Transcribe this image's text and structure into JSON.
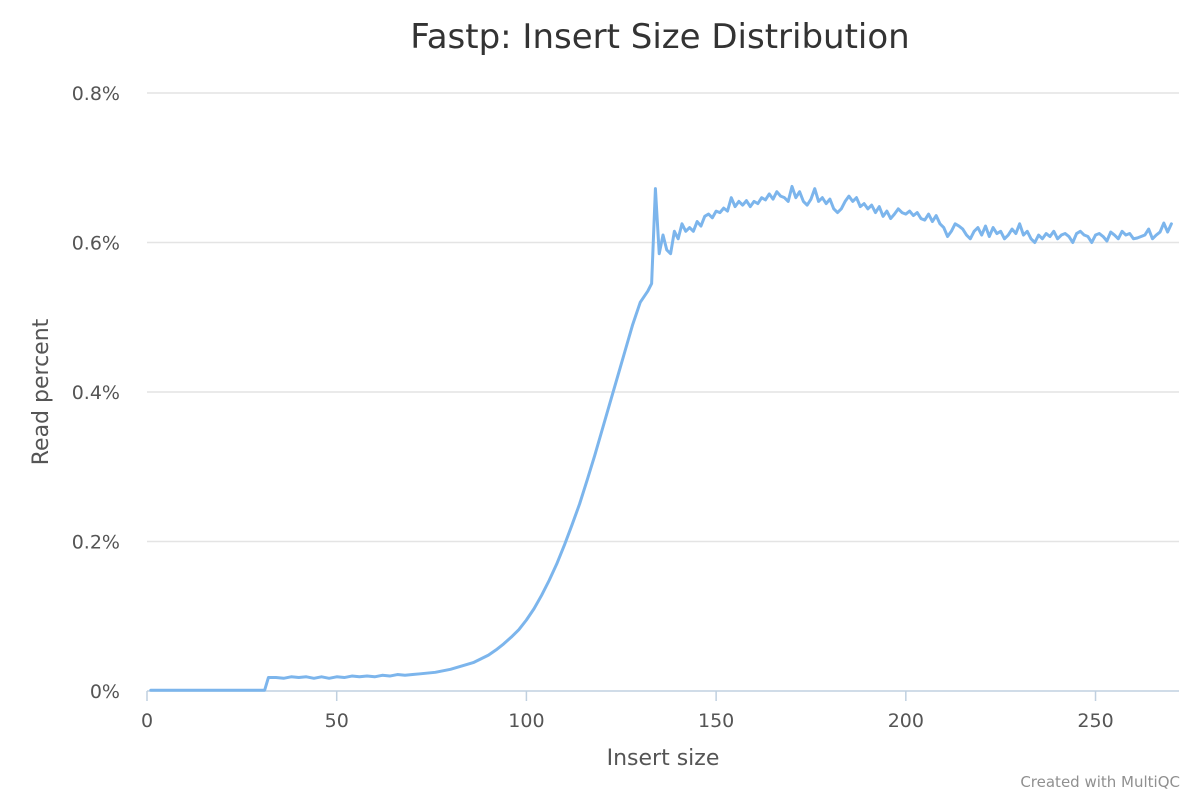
{
  "chart_data": {
    "type": "line",
    "title": "Fastp: Insert Size Distribution",
    "xlabel": "Insert size",
    "ylabel": "Read percent",
    "xlim": [
      0,
      272
    ],
    "ylim": [
      0,
      0.8
    ],
    "x_ticks": [
      "0",
      "50",
      "100",
      "150",
      "200",
      "250"
    ],
    "y_ticks": [
      "0%",
      "0.2%",
      "0.4%",
      "0.6%",
      "0.8%"
    ],
    "grid": true,
    "legend": "none",
    "series": [
      {
        "color": "#7cb5ec",
        "points": [
          [
            1,
            0.001
          ],
          [
            31,
            0.001
          ],
          [
            32,
            0.018
          ],
          [
            34,
            0.018
          ],
          [
            36,
            0.017
          ],
          [
            38,
            0.019
          ],
          [
            40,
            0.018
          ],
          [
            42,
            0.019
          ],
          [
            44,
            0.017
          ],
          [
            46,
            0.019
          ],
          [
            48,
            0.017
          ],
          [
            50,
            0.019
          ],
          [
            52,
            0.018
          ],
          [
            54,
            0.02
          ],
          [
            56,
            0.019
          ],
          [
            58,
            0.02
          ],
          [
            60,
            0.019
          ],
          [
            62,
            0.021
          ],
          [
            64,
            0.02
          ],
          [
            66,
            0.022
          ],
          [
            68,
            0.021
          ],
          [
            70,
            0.022
          ],
          [
            72,
            0.023
          ],
          [
            74,
            0.024
          ],
          [
            76,
            0.025
          ],
          [
            78,
            0.027
          ],
          [
            80,
            0.029
          ],
          [
            82,
            0.032
          ],
          [
            84,
            0.035
          ],
          [
            86,
            0.038
          ],
          [
            88,
            0.043
          ],
          [
            90,
            0.048
          ],
          [
            92,
            0.055
          ],
          [
            94,
            0.063
          ],
          [
            96,
            0.072
          ],
          [
            98,
            0.082
          ],
          [
            100,
            0.095
          ],
          [
            102,
            0.11
          ],
          [
            104,
            0.128
          ],
          [
            106,
            0.148
          ],
          [
            108,
            0.17
          ],
          [
            110,
            0.195
          ],
          [
            112,
            0.222
          ],
          [
            114,
            0.25
          ],
          [
            116,
            0.282
          ],
          [
            118,
            0.315
          ],
          [
            120,
            0.35
          ],
          [
            122,
            0.385
          ],
          [
            124,
            0.42
          ],
          [
            126,
            0.455
          ],
          [
            128,
            0.49
          ],
          [
            130,
            0.52
          ],
          [
            132,
            0.535
          ],
          [
            133,
            0.545
          ],
          [
            134,
            0.672
          ],
          [
            135,
            0.585
          ],
          [
            136,
            0.61
          ],
          [
            137,
            0.59
          ],
          [
            138,
            0.585
          ],
          [
            139,
            0.615
          ],
          [
            140,
            0.605
          ],
          [
            141,
            0.625
          ],
          [
            142,
            0.615
          ],
          [
            143,
            0.62
          ],
          [
            144,
            0.615
          ],
          [
            145,
            0.628
          ],
          [
            146,
            0.622
          ],
          [
            147,
            0.635
          ],
          [
            148,
            0.638
          ],
          [
            149,
            0.633
          ],
          [
            150,
            0.642
          ],
          [
            151,
            0.64
          ],
          [
            152,
            0.646
          ],
          [
            153,
            0.642
          ],
          [
            154,
            0.66
          ],
          [
            155,
            0.648
          ],
          [
            156,
            0.655
          ],
          [
            157,
            0.65
          ],
          [
            158,
            0.656
          ],
          [
            159,
            0.648
          ],
          [
            160,
            0.655
          ],
          [
            161,
            0.652
          ],
          [
            162,
            0.66
          ],
          [
            163,
            0.657
          ],
          [
            164,
            0.665
          ],
          [
            165,
            0.658
          ],
          [
            166,
            0.668
          ],
          [
            167,
            0.662
          ],
          [
            168,
            0.66
          ],
          [
            169,
            0.655
          ],
          [
            170,
            0.675
          ],
          [
            171,
            0.66
          ],
          [
            172,
            0.668
          ],
          [
            173,
            0.655
          ],
          [
            174,
            0.65
          ],
          [
            175,
            0.658
          ],
          [
            176,
            0.672
          ],
          [
            177,
            0.655
          ],
          [
            178,
            0.66
          ],
          [
            179,
            0.652
          ],
          [
            180,
            0.658
          ],
          [
            181,
            0.645
          ],
          [
            182,
            0.64
          ],
          [
            183,
            0.645
          ],
          [
            184,
            0.655
          ],
          [
            185,
            0.662
          ],
          [
            186,
            0.655
          ],
          [
            187,
            0.66
          ],
          [
            188,
            0.648
          ],
          [
            189,
            0.652
          ],
          [
            190,
            0.645
          ],
          [
            191,
            0.65
          ],
          [
            192,
            0.64
          ],
          [
            193,
            0.648
          ],
          [
            194,
            0.635
          ],
          [
            195,
            0.642
          ],
          [
            196,
            0.632
          ],
          [
            197,
            0.638
          ],
          [
            198,
            0.645
          ],
          [
            199,
            0.64
          ],
          [
            200,
            0.638
          ],
          [
            201,
            0.642
          ],
          [
            202,
            0.636
          ],
          [
            203,
            0.64
          ],
          [
            204,
            0.632
          ],
          [
            205,
            0.63
          ],
          [
            206,
            0.638
          ],
          [
            207,
            0.628
          ],
          [
            208,
            0.636
          ],
          [
            209,
            0.625
          ],
          [
            210,
            0.62
          ],
          [
            211,
            0.608
          ],
          [
            212,
            0.615
          ],
          [
            213,
            0.625
          ],
          [
            214,
            0.622
          ],
          [
            215,
            0.618
          ],
          [
            216,
            0.61
          ],
          [
            217,
            0.605
          ],
          [
            218,
            0.615
          ],
          [
            219,
            0.62
          ],
          [
            220,
            0.61
          ],
          [
            221,
            0.622
          ],
          [
            222,
            0.608
          ],
          [
            223,
            0.62
          ],
          [
            224,
            0.612
          ],
          [
            225,
            0.615
          ],
          [
            226,
            0.605
          ],
          [
            227,
            0.61
          ],
          [
            228,
            0.618
          ],
          [
            229,
            0.612
          ],
          [
            230,
            0.625
          ],
          [
            231,
            0.61
          ],
          [
            232,
            0.615
          ],
          [
            233,
            0.605
          ],
          [
            234,
            0.6
          ],
          [
            235,
            0.61
          ],
          [
            236,
            0.605
          ],
          [
            237,
            0.612
          ],
          [
            238,
            0.608
          ],
          [
            239,
            0.615
          ],
          [
            240,
            0.605
          ],
          [
            241,
            0.61
          ],
          [
            242,
            0.612
          ],
          [
            243,
            0.608
          ],
          [
            244,
            0.6
          ],
          [
            245,
            0.612
          ],
          [
            246,
            0.615
          ],
          [
            247,
            0.61
          ],
          [
            248,
            0.608
          ],
          [
            249,
            0.6
          ],
          [
            250,
            0.61
          ],
          [
            251,
            0.612
          ],
          [
            252,
            0.608
          ],
          [
            253,
            0.602
          ],
          [
            254,
            0.614
          ],
          [
            255,
            0.61
          ],
          [
            256,
            0.605
          ],
          [
            257,
            0.615
          ],
          [
            258,
            0.61
          ],
          [
            259,
            0.612
          ],
          [
            260,
            0.605
          ],
          [
            261,
            0.606
          ],
          [
            262,
            0.608
          ],
          [
            263,
            0.61
          ],
          [
            264,
            0.618
          ],
          [
            265,
            0.605
          ],
          [
            266,
            0.61
          ],
          [
            267,
            0.614
          ],
          [
            268,
            0.626
          ],
          [
            269,
            0.614
          ],
          [
            270,
            0.625
          ]
        ]
      }
    ]
  },
  "credit": "Created with MultiQC",
  "colors": {
    "series": "#7cb5ec",
    "grid": "#e4e4e4",
    "axis": "#c0d0e0",
    "text": "#555555"
  }
}
